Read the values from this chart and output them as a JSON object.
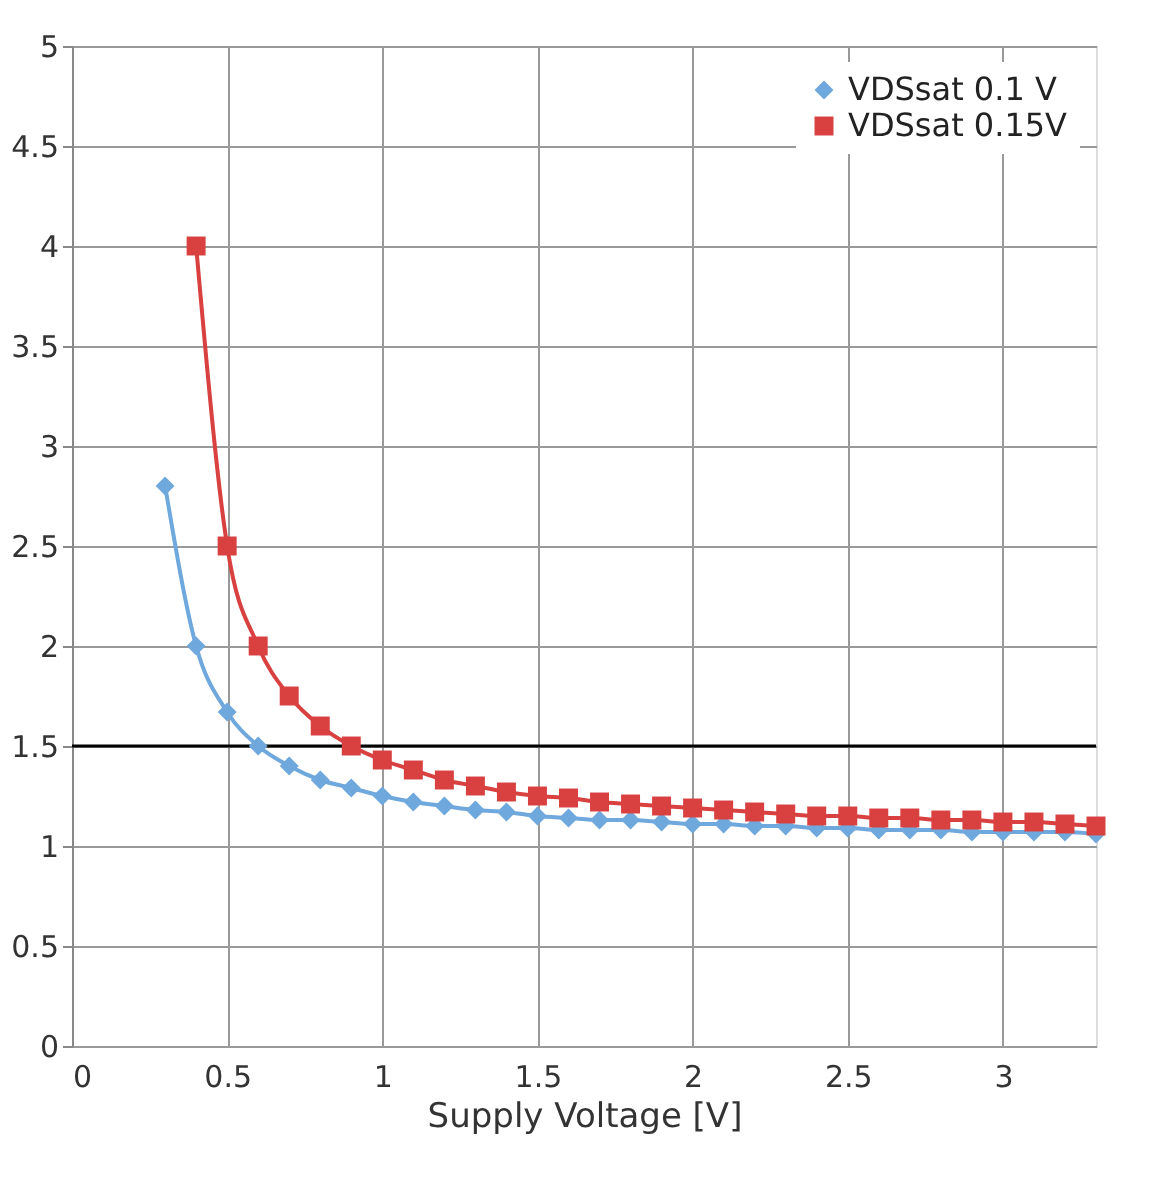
{
  "chart_data": {
    "type": "line",
    "xlabel": "Supply Voltage [V]",
    "xlim": [
      0,
      3.3
    ],
    "xticks": [
      0,
      0.5,
      1,
      1.5,
      2,
      2.5,
      3
    ],
    "ylim": [
      0,
      5
    ],
    "yticks": [
      0,
      0.5,
      1,
      1.5,
      2,
      2.5,
      3,
      3.5,
      4,
      4.5,
      5
    ],
    "grid": true,
    "legend": "top right",
    "ref_lines": [
      {
        "axis": "y",
        "value": 1.5,
        "color": "#000000"
      }
    ],
    "series": [
      {
        "name": "VDSsat 0.1 V",
        "color": "#6fa8dc",
        "marker": "diamond",
        "x": [
          0.3,
          0.4,
          0.5,
          0.6,
          0.7,
          0.8,
          0.9,
          1.0,
          1.1,
          1.2,
          1.3,
          1.4,
          1.5,
          1.6,
          1.7,
          1.8,
          1.9,
          2.0,
          2.1,
          2.2,
          2.3,
          2.4,
          2.5,
          2.6,
          2.7,
          2.8,
          2.9,
          3.0,
          3.1,
          3.2,
          3.3
        ],
        "values": [
          2.8,
          2.0,
          1.67,
          1.5,
          1.4,
          1.33,
          1.29,
          1.25,
          1.22,
          1.2,
          1.18,
          1.17,
          1.15,
          1.14,
          1.13,
          1.13,
          1.12,
          1.11,
          1.11,
          1.1,
          1.1,
          1.09,
          1.09,
          1.08,
          1.08,
          1.08,
          1.07,
          1.07,
          1.07,
          1.07,
          1.06
        ]
      },
      {
        "name": "VDSsat 0.15V",
        "color": "#d94040",
        "marker": "square",
        "x": [
          0.4,
          0.5,
          0.6,
          0.7,
          0.8,
          0.9,
          1.0,
          1.1,
          1.2,
          1.3,
          1.4,
          1.5,
          1.6,
          1.7,
          1.8,
          1.9,
          2.0,
          2.1,
          2.2,
          2.3,
          2.4,
          2.5,
          2.6,
          2.7,
          2.8,
          2.9,
          3.0,
          3.1,
          3.2,
          3.3
        ],
        "values": [
          4,
          2.5,
          2,
          1.75,
          1.6,
          1.5,
          1.43,
          1.38,
          1.33,
          1.3,
          1.27,
          1.25,
          1.24,
          1.22,
          1.21,
          1.2,
          1.19,
          1.18,
          1.17,
          1.16,
          1.15,
          1.15,
          1.14,
          1.14,
          1.13,
          1.13,
          1.12,
          1.12,
          1.11,
          1.1
        ]
      }
    ]
  }
}
